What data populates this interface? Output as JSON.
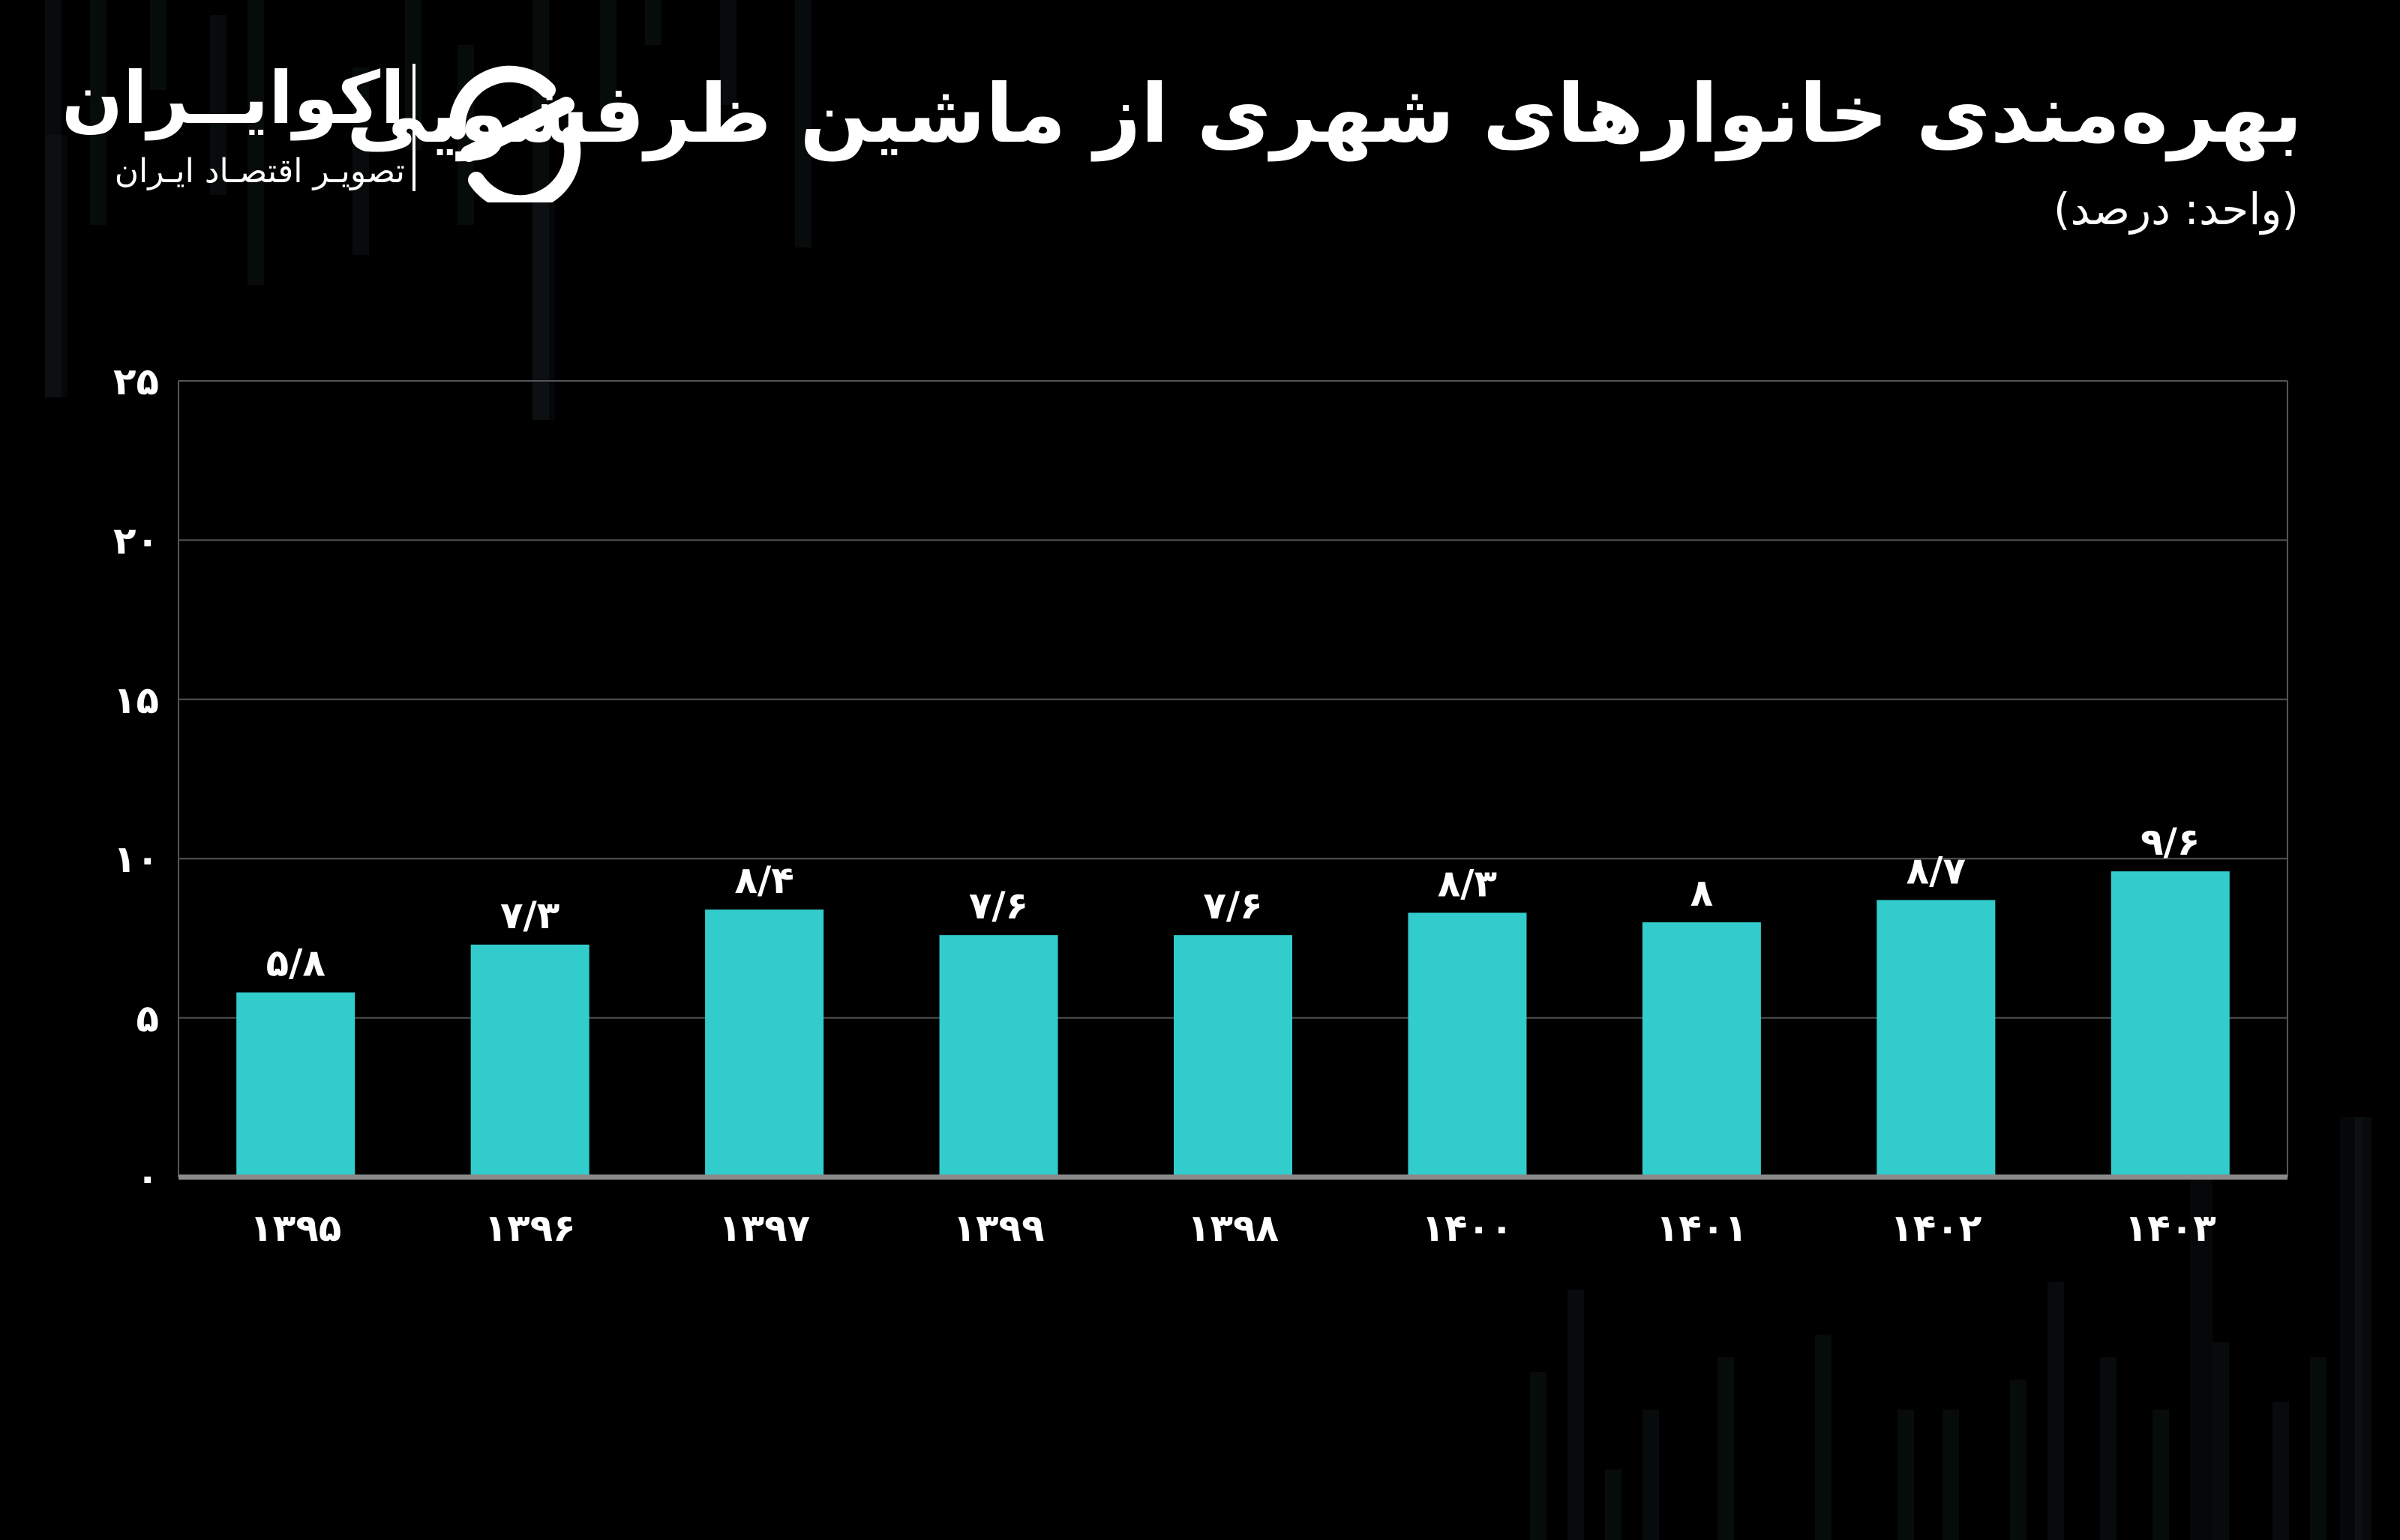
{
  "header": {
    "title": "بهره‌مندی خانوارهای شهری از ماشین ظرفشویی",
    "subtitle": "(واحد: درصد)"
  },
  "logo": {
    "name": "اکوایــران",
    "tagline": "تصویـر اقتصـاد ایـران",
    "icon": "ecoiran-logo-icon"
  },
  "colors": {
    "background": "#000000",
    "bar": "#33CCCC",
    "grid": "#555555",
    "text": "#FFFFFF"
  },
  "chart_data": {
    "type": "bar",
    "categories": [
      "۱۳۹۵",
      "۱۳۹۶",
      "۱۳۹۷",
      "۱۳۹۹",
      "۱۳۹۸",
      "۱۴۰۰",
      "۱۴۰۱",
      "۱۴۰۲",
      "۱۴۰۳"
    ],
    "values": [
      5.8,
      7.3,
      8.4,
      7.6,
      7.6,
      8.3,
      8,
      8.7,
      9.6
    ],
    "value_labels": [
      "۵/۸",
      "۷/۳",
      "۸/۴",
      "۷/۶",
      "۷/۶",
      "۸/۳",
      "۸",
      "۸/۷",
      "۹/۶"
    ],
    "yticks": [
      0,
      5,
      10,
      15,
      20,
      25
    ],
    "ytick_labels": [
      "۰",
      "۵",
      "۱۰",
      "۱۵",
      "۲۰",
      "۲۵"
    ],
    "ylim": [
      0,
      25
    ],
    "title": "بهره‌مندی خانوارهای شهری از ماشین ظرفشویی",
    "ylabel": "",
    "xlabel": "",
    "grid": true,
    "legend": "none"
  }
}
